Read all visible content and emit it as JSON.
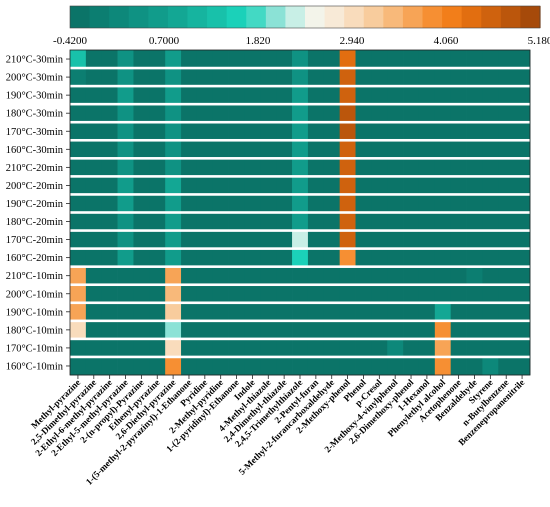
{
  "chart_data": {
    "type": "heatmap",
    "colorbar": {
      "ticks": [
        "-0.4200",
        "0.7000",
        "1.820",
        "2.940",
        "4.060",
        "5.180"
      ],
      "min": -0.42,
      "max": 5.18,
      "bins": 24,
      "colors": [
        "#0b7468",
        "#0c7e71",
        "#0d887a",
        "#0f9283",
        "#119c8b",
        "#13a794",
        "#16b49f",
        "#18c1aa",
        "#1bd1b9",
        "#43d9c4",
        "#8be2d6",
        "#c8efe6",
        "#f3f4ea",
        "#f8ead7",
        "#f9dcbc",
        "#f8cc9d",
        "#f8b97a",
        "#f7a456",
        "#f68f33",
        "#f27e1a",
        "#e26e10",
        "#cf620e",
        "#bb560c",
        "#a64a0a"
      ]
    },
    "rows": [
      "210°C-30min",
      "200°C-30min",
      "190°C-30min",
      "180°C-30min",
      "170°C-30min",
      "160°C-30min",
      "210°C-20min",
      "200°C-20min",
      "190°C-20min",
      "180°C-20min",
      "170°C-20min",
      "160°C-20min",
      "210°C-10min",
      "200°C-10min",
      "190°C-10min",
      "180°C-10min",
      "170°C-10min",
      "160°C-10min"
    ],
    "columns": [
      "Methyl-pyrazine",
      "2,5-Dimethyl-pyrazine",
      "2-Ethyl-6-methyl-pyrazine",
      "2-Ethyl-5-methyl-pyrazine",
      "2-(n-propyl)-Pyrazine",
      "Ethenyl-pyrazine",
      "2,6-Diethyl-pyrazine",
      "1-(5-methyl-2-pyrazinyl)-1-Ethanone",
      "Pyridine",
      "2-Methyl-pyridine",
      "1-(2-pyridinyl)-Ethanone",
      "Indole",
      "4-Methyl-thiazole",
      "2,4-Dimethyl-thiazole",
      "2,4,5-Trimethylthiazole",
      "2-Pentyl-furan",
      "5-Methyl-2-furancarboxaldehyde",
      "2-Methoxy-phenol",
      "Phenol",
      "p-Cresol",
      "2-Methoxy-4-vinylphenol",
      "2,6-Dimethoxy-phenol",
      "1-Hexanol",
      "Phenylethyl alcohol",
      "Acetophenone",
      "Benzaldehyde",
      "Styrene",
      "n-Butylbenzene",
      "Benzenepropanenitrile"
    ],
    "values": [
      [
        1.4,
        -0.3,
        -0.3,
        0.5,
        -0.25,
        -0.3,
        0.6,
        -0.35,
        -0.3,
        -0.3,
        -0.3,
        -0.35,
        -0.3,
        -0.3,
        0.5,
        -0.3,
        -0.35,
        4.3,
        -0.3,
        -0.3,
        -0.2,
        -0.2,
        -0.3,
        -0.3,
        -0.3,
        -0.3,
        -0.3,
        -0.3,
        -0.2
      ],
      [
        -0.1,
        -0.3,
        -0.3,
        0.5,
        -0.25,
        -0.3,
        0.5,
        -0.35,
        -0.3,
        -0.3,
        -0.3,
        -0.35,
        -0.3,
        -0.3,
        0.5,
        -0.3,
        -0.35,
        4.6,
        -0.3,
        -0.3,
        -0.2,
        -0.2,
        -0.3,
        -0.3,
        -0.3,
        -0.3,
        -0.3,
        -0.3,
        -0.2
      ],
      [
        -0.2,
        -0.3,
        -0.3,
        0.55,
        -0.25,
        -0.3,
        0.6,
        -0.35,
        -0.3,
        -0.3,
        -0.3,
        -0.35,
        -0.3,
        -0.2,
        0.6,
        -0.3,
        -0.35,
        4.7,
        -0.3,
        -0.3,
        -0.2,
        -0.2,
        -0.3,
        -0.3,
        -0.3,
        -0.3,
        -0.3,
        -0.3,
        -0.2
      ],
      [
        -0.2,
        -0.3,
        -0.3,
        0.5,
        -0.25,
        -0.3,
        0.5,
        -0.35,
        -0.3,
        -0.3,
        -0.3,
        -0.35,
        -0.3,
        -0.3,
        0.6,
        -0.3,
        -0.3,
        4.8,
        -0.3,
        -0.3,
        -0.2,
        -0.2,
        -0.3,
        -0.3,
        -0.3,
        -0.3,
        -0.3,
        -0.3,
        -0.2
      ],
      [
        -0.2,
        -0.3,
        -0.3,
        0.5,
        -0.25,
        -0.3,
        0.5,
        -0.35,
        -0.3,
        -0.3,
        -0.3,
        -0.35,
        -0.3,
        -0.3,
        0.6,
        -0.3,
        -0.35,
        4.8,
        -0.3,
        -0.3,
        -0.2,
        -0.2,
        -0.3,
        -0.3,
        -0.3,
        -0.3,
        -0.3,
        -0.3,
        -0.2
      ],
      [
        -0.2,
        -0.3,
        -0.3,
        0.5,
        -0.25,
        -0.3,
        0.5,
        -0.35,
        -0.3,
        -0.3,
        -0.3,
        -0.35,
        -0.3,
        -0.3,
        0.65,
        -0.3,
        -0.35,
        4.7,
        -0.3,
        -0.3,
        -0.2,
        -0.2,
        -0.3,
        -0.3,
        -0.3,
        -0.3,
        -0.3,
        -0.3,
        -0.2
      ],
      [
        -0.2,
        -0.3,
        -0.3,
        0.4,
        -0.25,
        -0.3,
        0.5,
        -0.35,
        -0.3,
        -0.3,
        -0.3,
        -0.35,
        -0.3,
        -0.3,
        0.6,
        -0.3,
        -0.35,
        4.7,
        -0.3,
        -0.3,
        -0.2,
        -0.2,
        -0.3,
        -0.3,
        -0.3,
        -0.3,
        -0.3,
        -0.3,
        -0.2
      ],
      [
        -0.2,
        -0.3,
        -0.3,
        0.6,
        -0.25,
        -0.3,
        0.8,
        -0.35,
        -0.3,
        -0.3,
        -0.3,
        -0.35,
        -0.3,
        -0.2,
        0.6,
        -0.3,
        -0.35,
        4.5,
        -0.3,
        -0.3,
        -0.2,
        -0.2,
        -0.3,
        -0.3,
        -0.3,
        -0.3,
        -0.3,
        -0.3,
        -0.2
      ],
      [
        -0.2,
        -0.3,
        -0.3,
        0.6,
        -0.25,
        -0.3,
        0.7,
        -0.35,
        -0.3,
        -0.3,
        -0.3,
        -0.35,
        -0.3,
        -0.2,
        0.65,
        -0.3,
        -0.35,
        4.6,
        -0.3,
        -0.3,
        -0.2,
        -0.2,
        -0.3,
        -0.3,
        -0.3,
        -0.3,
        -0.3,
        -0.3,
        -0.2
      ],
      [
        -0.2,
        -0.3,
        -0.3,
        0.5,
        -0.25,
        -0.3,
        0.6,
        -0.35,
        -0.3,
        -0.3,
        -0.3,
        -0.35,
        -0.3,
        -0.3,
        0.6,
        -0.3,
        -0.35,
        4.6,
        -0.3,
        -0.3,
        -0.2,
        -0.2,
        -0.3,
        -0.3,
        -0.3,
        -0.3,
        -0.3,
        -0.3,
        -0.2
      ],
      [
        -0.2,
        -0.3,
        -0.3,
        0.5,
        -0.25,
        -0.3,
        0.6,
        -0.35,
        -0.3,
        -0.3,
        -0.3,
        -0.35,
        -0.3,
        -0.3,
        2.2,
        -0.3,
        -0.35,
        4.6,
        -0.3,
        -0.3,
        -0.2,
        -0.2,
        -0.3,
        -0.3,
        -0.3,
        -0.3,
        -0.3,
        -0.3,
        -0.2
      ],
      [
        -0.2,
        -0.3,
        -0.3,
        0.6,
        -0.25,
        -0.3,
        0.6,
        -0.35,
        -0.3,
        -0.3,
        -0.3,
        -0.35,
        -0.3,
        -0.3,
        1.6,
        -0.3,
        -0.35,
        3.9,
        -0.3,
        -0.3,
        -0.2,
        -0.2,
        -0.3,
        -0.3,
        -0.3,
        -0.3,
        -0.3,
        -0.3,
        -0.2
      ],
      [
        3.6,
        -0.3,
        -0.3,
        -0.2,
        -0.25,
        -0.3,
        3.7,
        -0.35,
        -0.3,
        -0.3,
        -0.3,
        -0.35,
        -0.3,
        -0.3,
        -0.3,
        -0.3,
        -0.35,
        -0.3,
        -0.3,
        -0.3,
        -0.2,
        -0.2,
        -0.3,
        -0.3,
        -0.3,
        0.0,
        -0.3,
        -0.3,
        -0.2
      ],
      [
        3.7,
        -0.3,
        -0.3,
        -0.2,
        -0.25,
        -0.3,
        3.4,
        -0.35,
        -0.3,
        -0.3,
        -0.3,
        -0.35,
        -0.3,
        -0.3,
        -0.3,
        -0.3,
        -0.35,
        -0.3,
        -0.3,
        -0.3,
        -0.2,
        -0.2,
        -0.3,
        -0.3,
        -0.3,
        -0.3,
        -0.3,
        -0.3,
        -0.2
      ],
      [
        3.7,
        -0.3,
        -0.3,
        -0.2,
        -0.25,
        -0.3,
        3.1,
        -0.35,
        -0.3,
        -0.3,
        -0.3,
        -0.35,
        -0.3,
        -0.3,
        -0.3,
        -0.3,
        -0.35,
        -0.3,
        -0.3,
        -0.3,
        -0.2,
        -0.2,
        -0.3,
        0.8,
        -0.3,
        -0.3,
        -0.3,
        -0.3,
        -0.2
      ],
      [
        2.9,
        -0.3,
        -0.3,
        -0.2,
        -0.25,
        -0.3,
        2.1,
        -0.35,
        -0.3,
        -0.3,
        -0.3,
        -0.35,
        -0.3,
        -0.3,
        -0.3,
        -0.3,
        -0.35,
        -0.3,
        -0.3,
        -0.3,
        -0.2,
        -0.2,
        -0.3,
        3.8,
        -0.3,
        -0.3,
        -0.3,
        -0.3,
        -0.2
      ],
      [
        -0.2,
        -0.3,
        -0.3,
        -0.2,
        -0.25,
        -0.3,
        3.0,
        -0.35,
        -0.3,
        -0.3,
        -0.3,
        -0.35,
        -0.3,
        -0.3,
        -0.3,
        -0.3,
        -0.35,
        -0.3,
        -0.3,
        -0.3,
        0.1,
        -0.2,
        -0.3,
        3.6,
        -0.3,
        -0.3,
        -0.3,
        -0.3,
        -0.2
      ],
      [
        -0.2,
        -0.3,
        -0.3,
        -0.2,
        -0.25,
        -0.3,
        3.8,
        -0.35,
        -0.3,
        -0.3,
        -0.3,
        -0.35,
        -0.3,
        -0.3,
        -0.3,
        -0.3,
        -0.35,
        -0.3,
        -0.3,
        -0.3,
        -0.2,
        -0.2,
        -0.3,
        3.8,
        -0.3,
        -0.3,
        0.1,
        -0.3,
        -0.2
      ]
    ]
  }
}
